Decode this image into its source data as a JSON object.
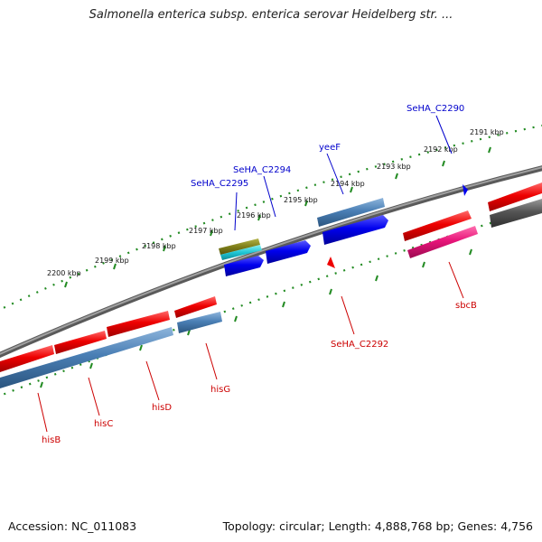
{
  "title": "Salmonella enterica subsp. enterica serovar Heidelberg str. ...",
  "footer": {
    "accession": "Accession: NC_011083",
    "summary": "Topology: circular; Length: 4,888,768 bp; Genes: 4,756"
  },
  "kbp_labels": [
    "2200 kbp",
    "2199 kbp",
    "2198 kbp",
    "2197 kbp",
    "2196 kbp",
    "2195 kbp",
    "2194 kbp",
    "2193 kbp",
    "2192 kbp",
    "2191 kbp"
  ],
  "genes_top": [
    {
      "label": "SeHA_C2295",
      "color": "#0000cc"
    },
    {
      "label": "SeHA_C2294",
      "color": "#0000cc"
    },
    {
      "label": "yeeF",
      "color": "#0000cc"
    },
    {
      "label": "SeHA_C2290",
      "color": "#0000cc"
    }
  ],
  "genes_bottom": [
    {
      "label": "hisB",
      "color": "#cc0000"
    },
    {
      "label": "hisC",
      "color": "#cc0000"
    },
    {
      "label": "hisD",
      "color": "#cc0000"
    },
    {
      "label": "hisG",
      "color": "#cc0000"
    },
    {
      "label": "SeHA_C2292",
      "color": "#cc0000"
    },
    {
      "label": "sbcB",
      "color": "#cc0000"
    }
  ],
  "colors": {
    "backbone": "#7a7a7a",
    "ticks": "#228b22",
    "forward_cds": "#0000ee",
    "reverse_cds": "#ee0000",
    "steelblue_track": "#4a7fb5",
    "pink_track": "#e8157a",
    "grey_track": "#555555"
  }
}
